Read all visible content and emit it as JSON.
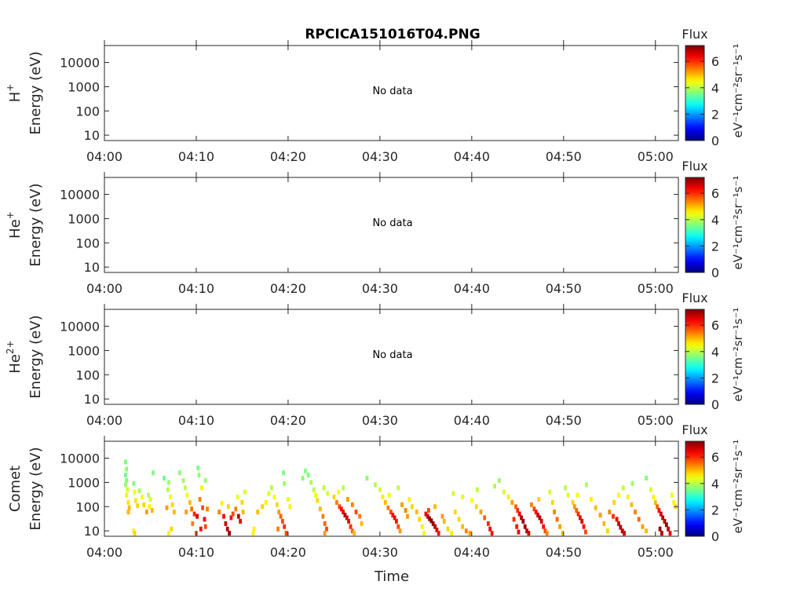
{
  "title": "RPCICA151016T04.PNG",
  "colorbar": {
    "title": "Flux",
    "ticks": [
      "0",
      "2",
      "4",
      "6"
    ],
    "max": 7.2,
    "label": "eV⁻¹cm⁻²sr⁻¹s⁻¹"
  },
  "xaxis": {
    "label": "Time",
    "ticks": [
      "04:00",
      "04:10",
      "04:20",
      "04:30",
      "04:40",
      "04:50",
      "05:00"
    ]
  },
  "yaxis": {
    "ticks": [
      "10000",
      "1000",
      "100",
      "10"
    ],
    "units": "Energy (eV)"
  },
  "chart_data": [
    {
      "type": "heatmap",
      "species": "H⁺",
      "ylabel_species": "H",
      "ylabel_sup": "+",
      "ylabel": "Energy (eV)",
      "xrange": [
        "04:00",
        "05:02"
      ],
      "yrange": [
        6,
        50000
      ],
      "yscale": "log",
      "status": "No data",
      "cells": []
    },
    {
      "type": "heatmap",
      "species": "He⁺",
      "ylabel_species": "He",
      "ylabel_sup": "+",
      "ylabel": "Energy (eV)",
      "xrange": [
        "04:00",
        "05:02"
      ],
      "yrange": [
        6,
        50000
      ],
      "yscale": "log",
      "status": "No data",
      "cells": []
    },
    {
      "type": "heatmap",
      "species": "He²⁺",
      "ylabel_species": "He",
      "ylabel_sup": "2+",
      "ylabel": "Energy (eV)",
      "xrange": [
        "04:00",
        "05:02"
      ],
      "yrange": [
        6,
        50000
      ],
      "yscale": "log",
      "status": "No data",
      "cells": []
    },
    {
      "type": "heatmap",
      "species": "Comet",
      "ylabel_species": "Comet",
      "ylabel_sup": "",
      "ylabel": "Energy (eV)",
      "xrange": [
        "04:00",
        "05:02"
      ],
      "yrange": [
        6,
        50000
      ],
      "yscale": "log",
      "colorscale": "jet",
      "zrange": [
        0,
        7.2
      ],
      "cell_format": "[time_minutes_after_04:00, energy_eV, flux]",
      "cells": [
        [
          2.3,
          7000,
          3.6
        ],
        [
          2.4,
          3500,
          3.7
        ],
        [
          2.3,
          2000,
          3.5
        ],
        [
          2.4,
          1200,
          3.6
        ],
        [
          2.3,
          800,
          3.8
        ],
        [
          2.5,
          500,
          4.2
        ],
        [
          2.4,
          300,
          4.4
        ],
        [
          2.6,
          150,
          4.7
        ],
        [
          2.7,
          90,
          5.0
        ],
        [
          2.6,
          60,
          5.0
        ],
        [
          3.2,
          900,
          3.6
        ],
        [
          3.3,
          400,
          4.4
        ],
        [
          3.4,
          180,
          4.7
        ],
        [
          3.6,
          110,
          4.8
        ],
        [
          3.8,
          450,
          3.9
        ],
        [
          4.1,
          250,
          4.4
        ],
        [
          4.3,
          120,
          4.8
        ],
        [
          4.6,
          60,
          5.2
        ],
        [
          4.8,
          300,
          4.0
        ],
        [
          4.9,
          100,
          4.6
        ],
        [
          3.2,
          10,
          4.6
        ],
        [
          3.3,
          8,
          4.8
        ],
        [
          5.2,
          70,
          5.0
        ],
        [
          5.0,
          200,
          4.2
        ],
        [
          5.3,
          2500,
          3.6
        ],
        [
          6.5,
          1500,
          3.5
        ],
        [
          7.0,
          1000,
          3.8
        ],
        [
          6.9,
          500,
          4.0
        ],
        [
          7.2,
          250,
          4.4
        ],
        [
          7.4,
          120,
          4.8
        ],
        [
          7.6,
          60,
          5.0
        ],
        [
          7.3,
          12,
          4.8
        ],
        [
          7.0,
          8,
          4.6
        ],
        [
          6.8,
          90,
          5.2
        ],
        [
          8.2,
          2500,
          3.7
        ],
        [
          8.6,
          1200,
          3.8
        ],
        [
          8.8,
          600,
          4.0
        ],
        [
          9.0,
          300,
          4.4
        ],
        [
          9.3,
          150,
          5.0
        ],
        [
          9.5,
          80,
          5.5
        ],
        [
          9.8,
          50,
          6.0
        ],
        [
          10.1,
          40,
          6.6
        ],
        [
          10.4,
          200,
          5.4
        ],
        [
          10.6,
          600,
          4.6
        ],
        [
          10.2,
          4000,
          3.6
        ],
        [
          10.3,
          2000,
          3.7
        ],
        [
          10.7,
          90,
          5.8
        ],
        [
          10.9,
          30,
          6.4
        ],
        [
          9.6,
          20,
          5.4
        ],
        [
          8.9,
          60,
          5.2
        ],
        [
          10.5,
          12,
          6.2
        ],
        [
          10.0,
          8,
          5.6
        ],
        [
          11.0,
          1200,
          3.8
        ],
        [
          11.2,
          80,
          5.4
        ],
        [
          11.0,
          15,
          5.8
        ],
        [
          12.5,
          60,
          5.4
        ],
        [
          13.0,
          40,
          6.2
        ],
        [
          13.2,
          20,
          6.6
        ],
        [
          13.4,
          12,
          6.8
        ],
        [
          13.6,
          8,
          7.0
        ],
        [
          13.8,
          35,
          6.2
        ],
        [
          14.0,
          50,
          5.8
        ],
        [
          14.3,
          80,
          5.4
        ],
        [
          14.6,
          40,
          6.8
        ],
        [
          14.8,
          25,
          6.4
        ],
        [
          15.0,
          150,
          4.8
        ],
        [
          15.3,
          400,
          4.2
        ],
        [
          14.5,
          250,
          4.4
        ],
        [
          15.1,
          60,
          5.0
        ],
        [
          13.5,
          100,
          4.8
        ],
        [
          12.8,
          140,
          4.6
        ],
        [
          16.2,
          8,
          4.6
        ],
        [
          16.3,
          12,
          4.6
        ],
        [
          16.7,
          60,
          5.0
        ],
        [
          17.2,
          100,
          4.8
        ],
        [
          17.6,
          150,
          4.6
        ],
        [
          17.9,
          350,
          4.2
        ],
        [
          18.2,
          600,
          4.0
        ],
        [
          18.5,
          250,
          4.4
        ],
        [
          18.8,
          120,
          4.8
        ],
        [
          19.0,
          60,
          5.2
        ],
        [
          19.2,
          40,
          5.6
        ],
        [
          19.4,
          25,
          5.8
        ],
        [
          19.6,
          15,
          6.0
        ],
        [
          19.8,
          8,
          5.8
        ],
        [
          18.9,
          12,
          5.4
        ],
        [
          19.5,
          2500,
          3.6
        ],
        [
          19.6,
          900,
          3.8
        ],
        [
          20.0,
          200,
          4.4
        ],
        [
          20.2,
          100,
          4.6
        ],
        [
          21.6,
          1500,
          3.7
        ],
        [
          21.9,
          3000,
          3.6
        ],
        [
          22.2,
          2000,
          3.6
        ],
        [
          22.5,
          1000,
          3.9
        ],
        [
          22.8,
          500,
          4.0
        ],
        [
          23.0,
          300,
          4.4
        ],
        [
          23.2,
          180,
          4.8
        ],
        [
          23.5,
          80,
          5.0
        ],
        [
          23.8,
          40,
          5.4
        ],
        [
          24.0,
          20,
          5.6
        ],
        [
          24.2,
          12,
          5.8
        ],
        [
          24.0,
          8,
          5.2
        ],
        [
          23.9,
          600,
          4.0
        ],
        [
          24.3,
          350,
          4.2
        ],
        [
          25.0,
          250,
          4.8
        ],
        [
          25.3,
          150,
          5.4
        ],
        [
          25.6,
          100,
          5.8
        ],
        [
          25.8,
          80,
          6.2
        ],
        [
          26.0,
          60,
          6.4
        ],
        [
          26.2,
          45,
          6.8
        ],
        [
          26.4,
          35,
          6.6
        ],
        [
          26.6,
          25,
          6.4
        ],
        [
          26.8,
          15,
          6.0
        ],
        [
          27.0,
          10,
          5.6
        ],
        [
          27.2,
          8,
          5.0
        ],
        [
          25.5,
          400,
          4.4
        ],
        [
          26.0,
          600,
          4.0
        ],
        [
          26.5,
          200,
          5.2
        ],
        [
          27.0,
          120,
          5.4
        ],
        [
          27.4,
          60,
          5.8
        ],
        [
          27.8,
          40,
          5.4
        ],
        [
          28.0,
          20,
          5.0
        ],
        [
          28.6,
          1500,
          3.7
        ],
        [
          29.5,
          800,
          3.9
        ],
        [
          30.0,
          500,
          4.2
        ],
        [
          30.3,
          250,
          4.6
        ],
        [
          30.6,
          150,
          5.0
        ],
        [
          30.9,
          90,
          5.4
        ],
        [
          31.2,
          60,
          5.8
        ],
        [
          31.4,
          45,
          6.2
        ],
        [
          31.6,
          35,
          6.4
        ],
        [
          31.8,
          25,
          6.2
        ],
        [
          32.0,
          15,
          5.8
        ],
        [
          32.2,
          10,
          5.2
        ],
        [
          32.4,
          120,
          5.2
        ],
        [
          32.8,
          70,
          5.4
        ],
        [
          33.0,
          40,
          5.2
        ],
        [
          33.2,
          200,
          4.6
        ],
        [
          33.5,
          100,
          4.8
        ],
        [
          34.0,
          60,
          5.0
        ],
        [
          34.3,
          30,
          4.8
        ],
        [
          34.6,
          15,
          4.6
        ],
        [
          34.8,
          8,
          4.4
        ],
        [
          31.0,
          300,
          4.4
        ],
        [
          32.0,
          600,
          4.0
        ],
        [
          35.0,
          50,
          6.2
        ],
        [
          35.2,
          40,
          6.6
        ],
        [
          35.4,
          32,
          7.0
        ],
        [
          35.6,
          26,
          7.2
        ],
        [
          35.8,
          20,
          7.0
        ],
        [
          36.0,
          15,
          6.8
        ],
        [
          36.2,
          11,
          6.6
        ],
        [
          36.4,
          8,
          6.2
        ],
        [
          35.3,
          70,
          5.8
        ],
        [
          36.0,
          100,
          5.0
        ],
        [
          36.8,
          40,
          5.2
        ],
        [
          37.0,
          25,
          5.0
        ],
        [
          37.4,
          12,
          4.8
        ],
        [
          37.8,
          8,
          4.6
        ],
        [
          38.2,
          60,
          4.8
        ],
        [
          38.6,
          30,
          4.8
        ],
        [
          39.0,
          15,
          5.0
        ],
        [
          39.4,
          10,
          5.4
        ],
        [
          39.8,
          8,
          5.2
        ],
        [
          38.0,
          350,
          4.2
        ],
        [
          39.0,
          250,
          4.3
        ],
        [
          40.0,
          180,
          4.5
        ],
        [
          40.5,
          100,
          4.8
        ],
        [
          41.0,
          60,
          5.2
        ],
        [
          41.4,
          35,
          5.6
        ],
        [
          41.8,
          20,
          6.0
        ],
        [
          42.0,
          12,
          6.4
        ],
        [
          42.2,
          8,
          6.2
        ],
        [
          40.6,
          500,
          4.0
        ],
        [
          42.5,
          700,
          3.9
        ],
        [
          43.0,
          1200,
          3.8
        ],
        [
          43.5,
          400,
          4.2
        ],
        [
          44.0,
          250,
          4.6
        ],
        [
          44.4,
          150,
          5.2
        ],
        [
          44.8,
          100,
          5.6
        ],
        [
          45.0,
          70,
          6.0
        ],
        [
          45.2,
          50,
          6.4
        ],
        [
          45.4,
          35,
          6.8
        ],
        [
          45.6,
          25,
          7.0
        ],
        [
          45.8,
          15,
          7.0
        ],
        [
          46.0,
          10,
          6.8
        ],
        [
          46.2,
          8,
          6.6
        ],
        [
          44.6,
          30,
          6.0
        ],
        [
          44.9,
          15,
          6.2
        ],
        [
          45.1,
          9,
          6.4
        ],
        [
          46.5,
          120,
          5.4
        ],
        [
          46.8,
          80,
          5.8
        ],
        [
          47.0,
          60,
          6.2
        ],
        [
          47.2,
          45,
          6.6
        ],
        [
          47.4,
          35,
          6.8
        ],
        [
          47.6,
          25,
          6.6
        ],
        [
          47.8,
          15,
          6.2
        ],
        [
          48.0,
          10,
          5.8
        ],
        [
          48.2,
          8,
          5.4
        ],
        [
          47.3,
          200,
          4.8
        ],
        [
          48.5,
          400,
          4.2
        ],
        [
          48.8,
          150,
          4.8
        ],
        [
          49.0,
          60,
          5.4
        ],
        [
          49.3,
          30,
          5.6
        ],
        [
          49.6,
          15,
          5.2
        ],
        [
          49.9,
          8,
          5.0
        ],
        [
          50.2,
          600,
          4.0
        ],
        [
          50.5,
          300,
          4.2
        ],
        [
          51.0,
          150,
          4.8
        ],
        [
          51.2,
          100,
          5.2
        ],
        [
          51.4,
          70,
          5.6
        ],
        [
          51.6,
          50,
          6.0
        ],
        [
          51.8,
          35,
          6.4
        ],
        [
          52.0,
          25,
          6.6
        ],
        [
          52.2,
          15,
          6.2
        ],
        [
          52.4,
          9,
          5.8
        ],
        [
          51.5,
          300,
          4.4
        ],
        [
          52.5,
          800,
          3.9
        ],
        [
          53.0,
          200,
          4.6
        ],
        [
          53.5,
          90,
          5.0
        ],
        [
          54.0,
          45,
          5.2
        ],
        [
          54.4,
          20,
          5.0
        ],
        [
          54.8,
          10,
          4.8
        ],
        [
          55.0,
          60,
          5.4
        ],
        [
          55.4,
          40,
          6.0
        ],
        [
          55.8,
          30,
          6.4
        ],
        [
          56.0,
          20,
          6.6
        ],
        [
          56.2,
          14,
          6.8
        ],
        [
          56.4,
          10,
          6.8
        ],
        [
          56.6,
          8,
          6.6
        ],
        [
          55.5,
          150,
          4.8
        ],
        [
          56.0,
          300,
          4.4
        ],
        [
          56.5,
          600,
          4.0
        ],
        [
          57.0,
          250,
          4.6
        ],
        [
          57.4,
          120,
          5.0
        ],
        [
          57.8,
          60,
          5.4
        ],
        [
          58.2,
          30,
          5.6
        ],
        [
          58.6,
          15,
          5.2
        ],
        [
          59.0,
          10,
          5.0
        ],
        [
          57.5,
          900,
          3.8
        ],
        [
          59.5,
          500,
          4.2
        ],
        [
          59.8,
          250,
          4.6
        ],
        [
          60.0,
          150,
          5.0
        ],
        [
          60.2,
          100,
          5.6
        ],
        [
          60.4,
          70,
          6.2
        ],
        [
          60.6,
          50,
          6.6
        ],
        [
          60.8,
          35,
          6.8
        ],
        [
          61.0,
          25,
          6.8
        ],
        [
          61.2,
          18,
          7.0
        ],
        [
          61.4,
          12,
          6.8
        ],
        [
          61.6,
          8,
          6.4
        ],
        [
          60.5,
          12,
          7.0
        ],
        [
          60.7,
          8,
          6.8
        ],
        [
          61.8,
          300,
          4.4
        ],
        [
          62.0,
          150,
          4.6
        ],
        [
          62.2,
          100,
          4.8
        ],
        [
          59.0,
          1500,
          3.6
        ]
      ]
    }
  ]
}
